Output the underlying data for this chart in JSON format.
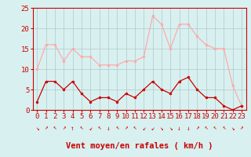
{
  "hours": [
    0,
    1,
    2,
    3,
    4,
    5,
    6,
    7,
    8,
    9,
    10,
    11,
    12,
    13,
    14,
    15,
    16,
    17,
    18,
    19,
    20,
    21,
    22,
    23
  ],
  "avg_wind": [
    2,
    7,
    7,
    5,
    7,
    4,
    2,
    3,
    3,
    2,
    4,
    3,
    5,
    7,
    5,
    4,
    7,
    8,
    5,
    3,
    3,
    1,
    0,
    1
  ],
  "gust_wind": [
    10,
    16,
    16,
    12,
    15,
    13,
    13,
    11,
    11,
    11,
    12,
    12,
    13,
    23,
    21,
    15,
    21,
    21,
    18,
    16,
    15,
    15,
    6,
    1
  ],
  "wind_arrows": [
    "↘",
    "↗",
    "↖",
    "↗",
    "↑",
    "↖",
    "↙",
    "↖",
    "↓",
    "↖",
    "↗",
    "↖",
    "↙",
    "↙",
    "↘",
    "↘",
    "↓",
    "↓",
    "↗",
    "↖",
    "↖",
    "↖",
    "↘",
    "↗"
  ],
  "avg_color": "#cc0000",
  "gust_color": "#ffaaaa",
  "bg_color": "#d8f0f0",
  "grid_color": "#b0c8c8",
  "xlabel": "Vent moyen/en rafales ( km/h )",
  "xlabel_color": "#cc0000",
  "ylim": [
    0,
    25
  ],
  "yticks": [
    0,
    5,
    10,
    15,
    20,
    25
  ],
  "tick_fontsize": 6.5,
  "axis_fontsize": 7.5
}
